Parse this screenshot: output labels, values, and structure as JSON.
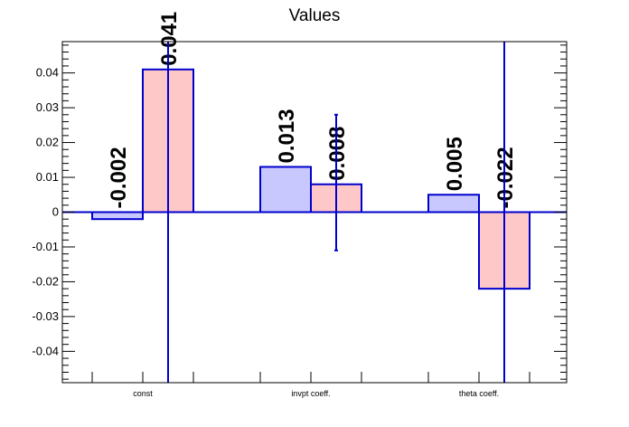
{
  "chart_data": {
    "type": "bar",
    "title": "Values",
    "categories": [
      "const",
      "invpt coeff.",
      "theta coeff."
    ],
    "series": [
      {
        "values": [
          -0.002,
          0.013,
          0.005
        ],
        "color": "#c8c8ff",
        "edge": "#0000cc"
      },
      {
        "values": [
          0.041,
          0.008,
          -0.022
        ],
        "color": "#ffc8c8",
        "edge": "#0000cc"
      }
    ],
    "data_labels": [
      [
        "-0.002",
        "0.013",
        "0.005"
      ],
      [
        "0.041",
        "0.008",
        "-0.022"
      ]
    ],
    "error_bars": [
      [
        null,
        null,
        null
      ],
      [
        [
          -0.05,
          0.05
        ],
        [
          -0.011,
          0.028
        ],
        [
          -0.05,
          0.05
        ]
      ]
    ],
    "yticks": [
      -0.04,
      -0.03,
      -0.02,
      -0.01,
      0,
      0.01,
      0.02,
      0.03,
      0.04
    ],
    "ytick_labels": [
      "-0.04",
      "-0.03",
      "-0.02",
      "-0.01",
      "0",
      "0.01",
      "0.02",
      "0.03",
      "0.04"
    ],
    "ylim": [
      -0.049,
      0.049
    ],
    "grid": false,
    "axis_color": "#000000",
    "zero_line_color": "#0000cc",
    "error_color": "#0000cc"
  }
}
